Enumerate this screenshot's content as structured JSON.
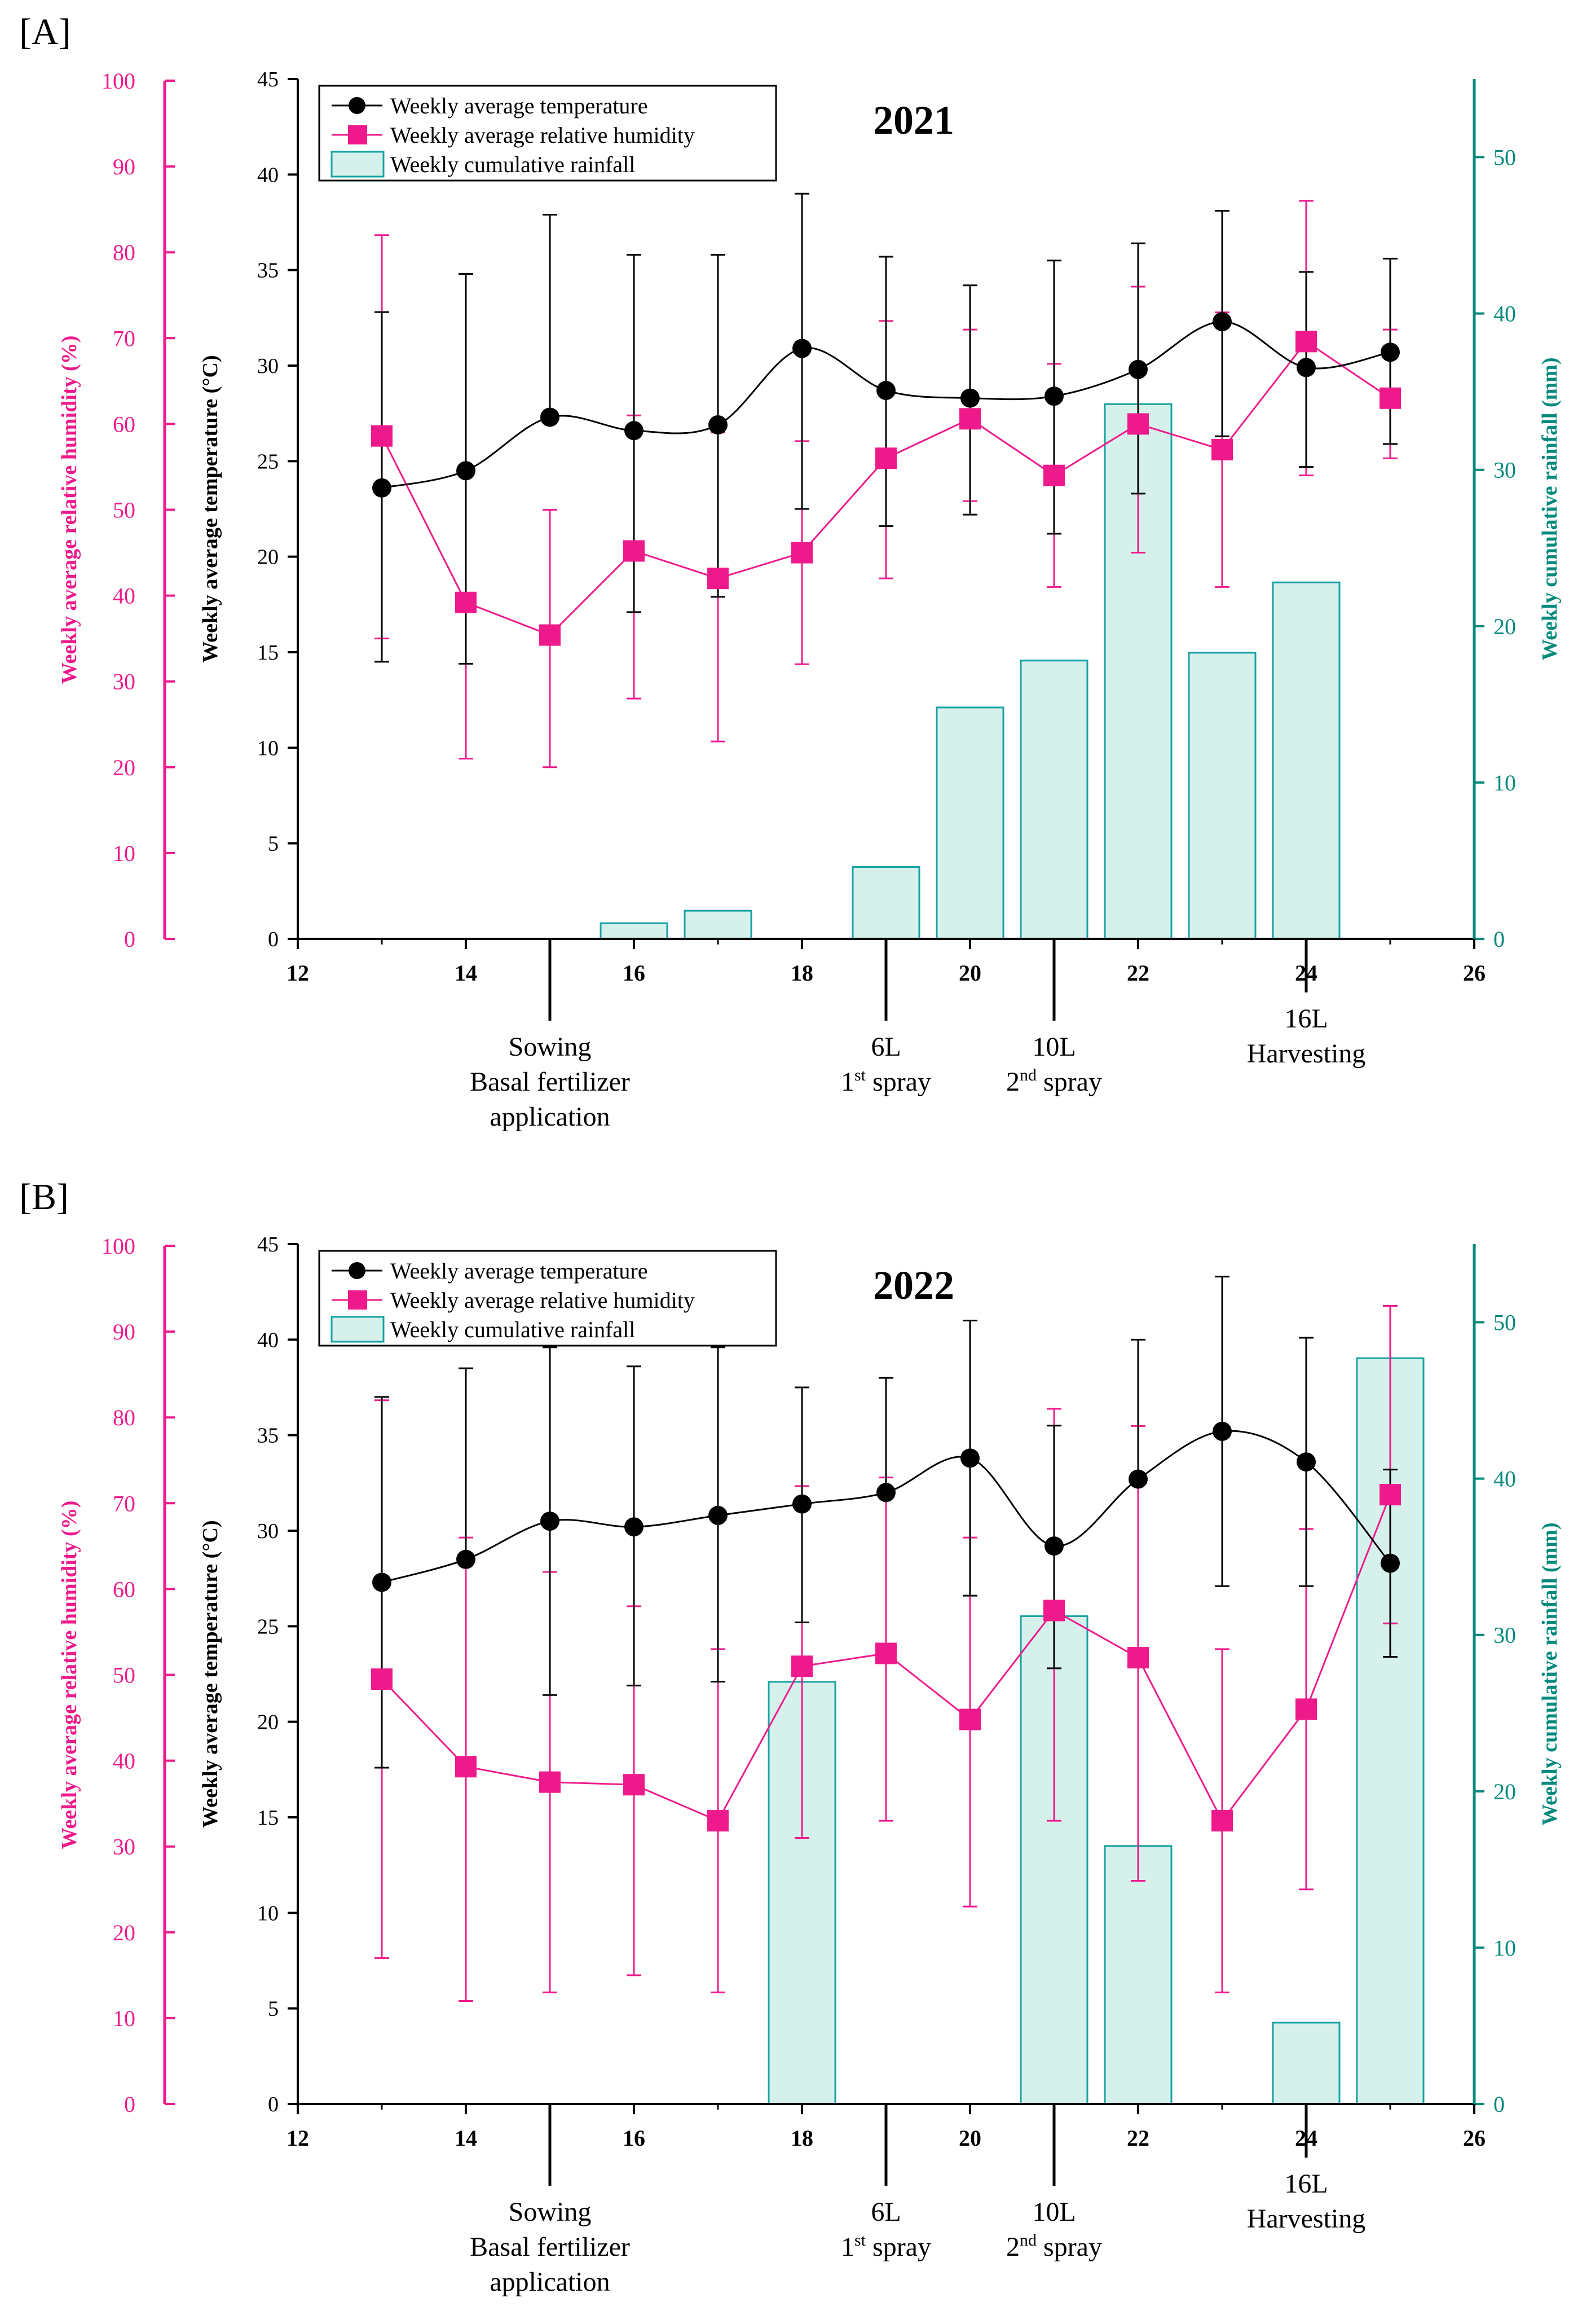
{
  "colors": {
    "temperature": "#000000",
    "humidity": "#ee1a8c",
    "rainfall_fill": "#d6f0ec",
    "rainfall_edge": "#17a2a2",
    "rainfall_axis": "#00897b"
  },
  "chart_data": [
    {
      "type": "bar+line",
      "panel_label": "[A]",
      "title": "2021",
      "xlabel": "",
      "xlim": [
        12,
        26
      ],
      "xticks": [
        12,
        14,
        16,
        18,
        20,
        22,
        24,
        26
      ],
      "y_left_outer": {
        "label": "Weekly average relative humidity (%)",
        "ylim": [
          0,
          100
        ],
        "ticks": [
          0,
          10,
          20,
          30,
          40,
          50,
          60,
          70,
          80,
          90,
          100
        ]
      },
      "y_left_inner": {
        "label": "Weekly average temperature (°C)",
        "ylim": [
          0,
          45
        ],
        "ticks": [
          0,
          5,
          10,
          15,
          20,
          25,
          30,
          35,
          40,
          45
        ]
      },
      "y_right": {
        "label": "Weekly cumulative rainfall (mm)",
        "ylim": [
          0,
          55
        ],
        "ticks": [
          0,
          10,
          20,
          30,
          40,
          50
        ]
      },
      "legend": [
        "Weekly average temperature",
        "Weekly average relative humidity",
        "Weekly cumulative rainfall"
      ],
      "legend_position": "top-left",
      "series": [
        {
          "name": "Weekly average temperature",
          "axis": "temperature",
          "x": [
            13,
            14,
            15,
            16,
            17,
            18,
            19,
            20,
            21,
            22,
            23,
            24,
            25
          ],
          "values": [
            23.6,
            24.5,
            27.3,
            26.6,
            26.9,
            30.9,
            28.7,
            28.3,
            28.4,
            29.8,
            32.3,
            29.9,
            30.7
          ],
          "error_low": [
            14.5,
            14.4,
            null,
            17.1,
            17.9,
            22.5,
            21.6,
            22.2,
            21.2,
            23.3,
            26.3,
            24.7,
            25.9
          ],
          "error_high": [
            32.8,
            34.8,
            37.9,
            35.8,
            35.8,
            39.0,
            35.7,
            34.2,
            35.5,
            36.4,
            38.1,
            34.9,
            35.6
          ]
        },
        {
          "name": "Weekly average relative humidity",
          "axis": "humidity",
          "x": [
            13,
            14,
            15,
            16,
            17,
            18,
            19,
            20,
            21,
            22,
            23,
            24,
            25
          ],
          "values": [
            58.6,
            39.2,
            35.4,
            45.2,
            42.0,
            45.0,
            56.0,
            60.6,
            54.0,
            60.0,
            57.0,
            69.6,
            63.0
          ],
          "error_low": [
            35.0,
            21.0,
            20.0,
            28.0,
            23.0,
            32.0,
            42.0,
            51.0,
            41.0,
            45.0,
            41.0,
            54.0,
            56.0
          ],
          "error_high": [
            82.0,
            55.0,
            50.0,
            61.0,
            59.0,
            58.0,
            72.0,
            71.0,
            67.0,
            76.0,
            73.0,
            86.0,
            71.0
          ]
        },
        {
          "name": "Weekly cumulative rainfall",
          "axis": "rainfall",
          "x": [
            16,
            17,
            19,
            20,
            21,
            22,
            23,
            24
          ],
          "values": [
            1.0,
            1.8,
            4.6,
            14.8,
            17.8,
            34.2,
            18.3,
            22.8
          ]
        }
      ],
      "annotations": [
        {
          "x": 15,
          "lines": [
            "Sowing",
            "Basal fertilizer",
            "application"
          ]
        },
        {
          "x": 19,
          "lines": [
            "6L",
            "1st spray"
          ]
        },
        {
          "x": 21,
          "lines": [
            "10L",
            "2nd spray"
          ]
        },
        {
          "x": 24,
          "lines": [
            "16L",
            "Harvesting"
          ]
        }
      ]
    },
    {
      "type": "bar+line",
      "panel_label": "[B]",
      "title": "2022",
      "xlabel": "",
      "xlim": [
        12,
        26
      ],
      "xticks": [
        12,
        14,
        16,
        18,
        20,
        22,
        24,
        26
      ],
      "y_left_outer": {
        "label": "Weekly average relative humidity (%)",
        "ylim": [
          0,
          100
        ],
        "ticks": [
          0,
          10,
          20,
          30,
          40,
          50,
          60,
          70,
          80,
          90,
          100
        ]
      },
      "y_left_inner": {
        "label": "Weekly average temperature (°C)",
        "ylim": [
          0,
          45
        ],
        "ticks": [
          0,
          5,
          10,
          15,
          20,
          25,
          30,
          35,
          40,
          45
        ]
      },
      "y_right": {
        "label": "Weekly cumulative rainfall (mm)",
        "ylim": [
          0,
          55
        ],
        "ticks": [
          0,
          10,
          20,
          30,
          40,
          50
        ]
      },
      "legend": [
        "Weekly average temperature",
        "Weekly average relative humidity",
        "Weekly cumulative rainfall"
      ],
      "legend_position": "top-left",
      "series": [
        {
          "name": "Weekly average temperature",
          "axis": "temperature",
          "x": [
            13,
            14,
            15,
            16,
            17,
            18,
            19,
            20,
            21,
            22,
            23,
            24,
            25
          ],
          "values": [
            27.3,
            28.5,
            30.5,
            30.2,
            30.8,
            31.4,
            32.0,
            33.8,
            29.2,
            32.7,
            35.2,
            33.6,
            28.3
          ],
          "error_low": [
            17.6,
            null,
            21.4,
            21.9,
            22.1,
            25.2,
            null,
            26.6,
            22.8,
            null,
            27.1,
            27.1,
            23.4
          ],
          "error_high": [
            37.0,
            38.5,
            39.6,
            38.6,
            39.6,
            37.5,
            38.0,
            41.0,
            35.5,
            40.0,
            43.3,
            40.1,
            33.2
          ]
        },
        {
          "name": "Weekly average relative humidity",
          "axis": "humidity",
          "x": [
            13,
            14,
            15,
            16,
            17,
            18,
            19,
            20,
            21,
            22,
            23,
            24,
            25
          ],
          "values": [
            49.5,
            39.3,
            37.5,
            37.2,
            33.0,
            51.0,
            52.5,
            44.8,
            57.5,
            52.0,
            33.0,
            46.0,
            71.0
          ],
          "error_low": [
            17.0,
            12.0,
            13.0,
            15.0,
            13.0,
            31.0,
            33.0,
            23.0,
            33.0,
            26.0,
            13.0,
            25.0,
            56.0
          ],
          "error_high": [
            82.0,
            66.0,
            62.0,
            58.0,
            53.0,
            72.0,
            73.0,
            66.0,
            81.0,
            79.0,
            53.0,
            67.0,
            93.0
          ]
        },
        {
          "name": "Weekly cumulative rainfall",
          "axis": "rainfall",
          "x": [
            18,
            21,
            22,
            24,
            25
          ],
          "values": [
            27.0,
            31.2,
            16.5,
            5.2,
            47.7
          ]
        }
      ],
      "annotations": [
        {
          "x": 15,
          "lines": [
            "Sowing",
            "Basal fertilizer",
            "application"
          ]
        },
        {
          "x": 19,
          "lines": [
            "6L",
            "1st spray"
          ]
        },
        {
          "x": 21,
          "lines": [
            "10L",
            "2nd spray"
          ]
        },
        {
          "x": 24,
          "lines": [
            "16L",
            "Harvesting"
          ]
        }
      ]
    }
  ]
}
